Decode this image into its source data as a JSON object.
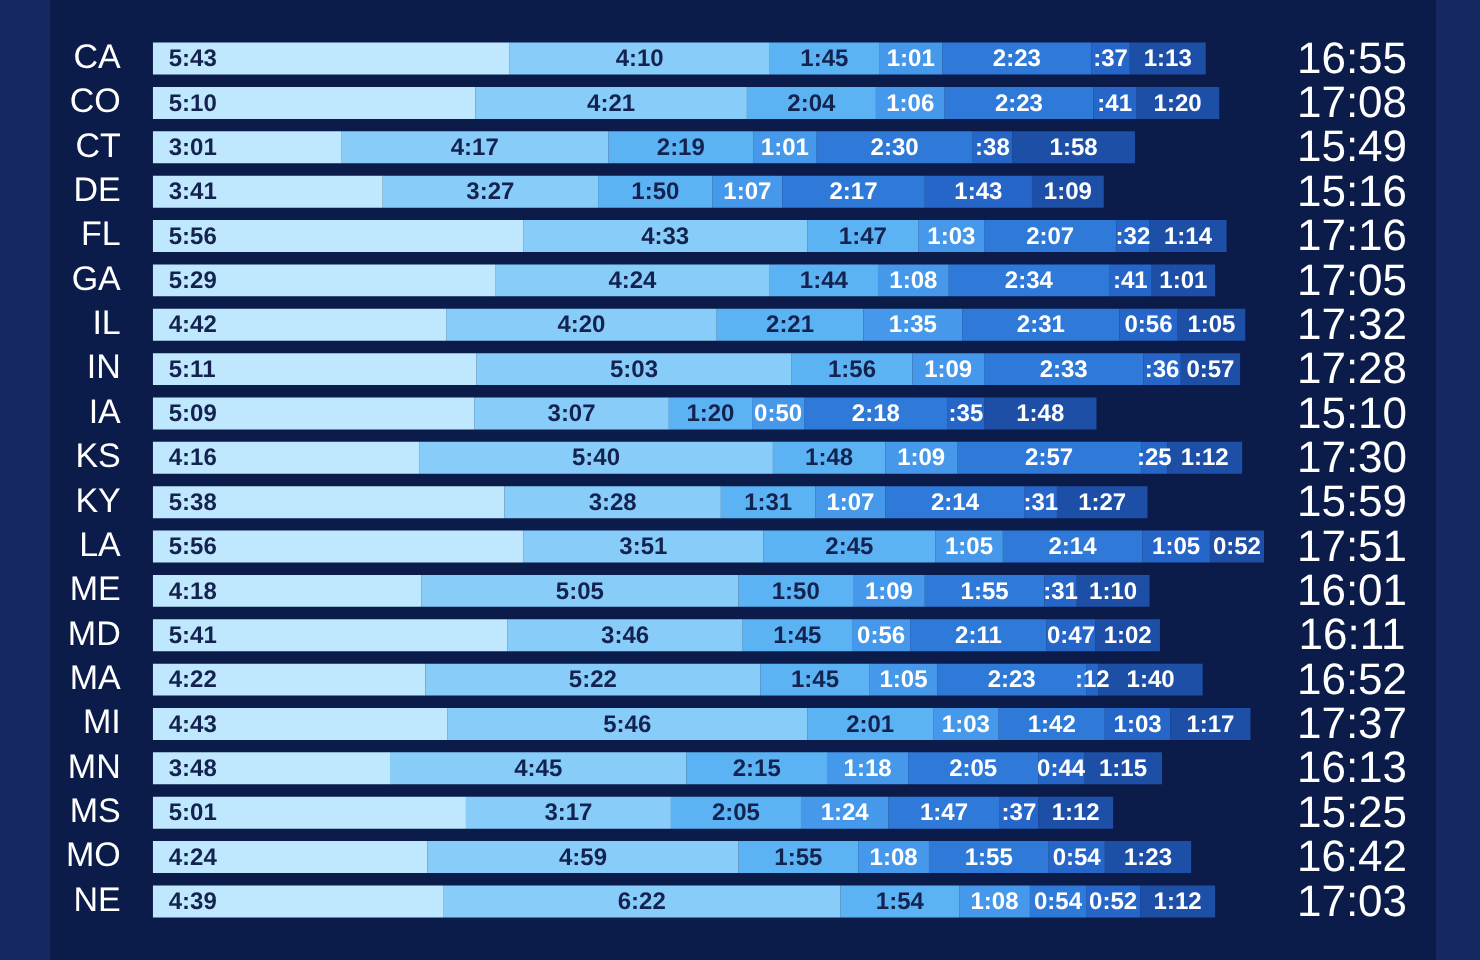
{
  "chart_data": {
    "type": "bar",
    "orientation": "horizontal",
    "stacked": true,
    "categories": [
      "CA",
      "CO",
      "CT",
      "DE",
      "FL",
      "GA",
      "IL",
      "IN",
      "IA",
      "KS",
      "KY",
      "LA",
      "ME",
      "MD",
      "MA",
      "MI",
      "MN",
      "MS",
      "MO",
      "NE"
    ],
    "series": [
      {
        "color": "#bfe7fd",
        "values": [
          343,
          310,
          181,
          221,
          356,
          329,
          282,
          311,
          309,
          256,
          338,
          356,
          258,
          341,
          262,
          283,
          228,
          301,
          264,
          279
        ],
        "value_labels": [
          "5:43",
          "5:10",
          "3:01",
          "3:41",
          "5:56",
          "5:29",
          "4:42",
          "5:11",
          "5:09",
          "4:16",
          "5:38",
          "5:56",
          "4:18",
          "5:41",
          "4:22",
          "4:43",
          "3:48",
          "5:01",
          "4:24",
          "4:39"
        ]
      },
      {
        "color": "#88cdf9",
        "values": [
          250,
          261,
          257,
          207,
          273,
          264,
          260,
          303,
          187,
          340,
          208,
          231,
          305,
          226,
          322,
          346,
          285,
          197,
          299,
          382
        ],
        "value_labels": [
          "4:10",
          "4:21",
          "4:17",
          "3:27",
          "4:33",
          "4:24",
          "4:20",
          "5:03",
          "3:07",
          "5:40",
          "3:28",
          "3:51",
          "5:05",
          "3:46",
          "5:22",
          "5:46",
          "4:45",
          "3:17",
          "4:59",
          "6:22"
        ]
      },
      {
        "color": "#5cb3f3",
        "values": [
          105,
          124,
          139,
          110,
          107,
          104,
          141,
          116,
          80,
          108,
          91,
          165,
          110,
          105,
          105,
          121,
          135,
          125,
          115,
          114
        ],
        "value_labels": [
          "1:45",
          "2:04",
          "2:19",
          "1:50",
          "1:47",
          "1:44",
          "2:21",
          "1:56",
          "1:20",
          "1:48",
          "1:31",
          "2:45",
          "1:50",
          "1:45",
          "1:45",
          "2:01",
          "2:15",
          "2:05",
          "1:55",
          "1:54"
        ]
      },
      {
        "color": "#4598ea",
        "values": [
          61,
          66,
          61,
          67,
          63,
          68,
          95,
          69,
          50,
          69,
          67,
          65,
          69,
          56,
          65,
          63,
          78,
          84,
          68,
          68
        ],
        "value_labels": [
          "1:01",
          "1:06",
          "1:01",
          "1:07",
          "1:03",
          "1:08",
          "1:35",
          "1:09",
          "0:50",
          "1:09",
          "1:07",
          "1:05",
          "1:09",
          "0:56",
          "1:05",
          "1:03",
          "1:18",
          "1:24",
          "1:08",
          "1:08"
        ]
      },
      {
        "color": "#2f7ad9",
        "values": [
          143,
          143,
          150,
          137,
          127,
          154,
          151,
          153,
          138,
          177,
          134,
          134,
          115,
          131,
          143,
          102,
          125,
          107,
          115,
          54
        ],
        "value_labels": [
          "2:23",
          "2:23",
          "2:30",
          "2:17",
          "2:07",
          "2:34",
          "2:31",
          "2:33",
          "2:18",
          "2:57",
          "2:14",
          "2:14",
          "1:55",
          "2:11",
          "2:23",
          "1:42",
          "2:05",
          "1:47",
          "1:55",
          "0:54"
        ]
      },
      {
        "color": "#2566c8",
        "values": [
          37,
          41,
          38,
          103,
          32,
          41,
          56,
          36,
          35,
          25,
          31,
          65,
          31,
          47,
          12,
          63,
          44,
          37,
          54,
          52
        ],
        "value_labels": [
          ":37",
          ":41",
          ":38",
          "1:43",
          ":32",
          ":41",
          "0:56",
          ":36",
          ":35",
          ":25",
          ":31",
          "1:05",
          ":31",
          "0:47",
          ":12",
          "1:03",
          "0:44",
          ":37",
          "0:54",
          "0:52"
        ]
      },
      {
        "color": "#1d4fa6",
        "values": [
          73,
          80,
          118,
          69,
          74,
          61,
          65,
          57,
          108,
          72,
          87,
          52,
          70,
          62,
          100,
          77,
          75,
          72,
          83,
          72
        ],
        "value_labels": [
          "1:13",
          "1:20",
          "1:58",
          "1:09",
          "1:14",
          "1:01",
          "1:05",
          "0:57",
          "1:48",
          "1:12",
          "1:27",
          "0:52",
          "1:10",
          "1:02",
          "1:40",
          "1:17",
          "1:15",
          "1:12",
          "1:23",
          "1:12"
        ]
      }
    ],
    "annotations": [
      "16:55",
      "17:08",
      "15:49",
      "15:16",
      "17:16",
      "17:05",
      "17:32",
      "17:28",
      "15:10",
      "17:30",
      "15:59",
      "17:51",
      "16:01",
      "16:11",
      "16:52",
      "17:37",
      "16:13",
      "15:25",
      "16:42",
      "17:03"
    ]
  }
}
